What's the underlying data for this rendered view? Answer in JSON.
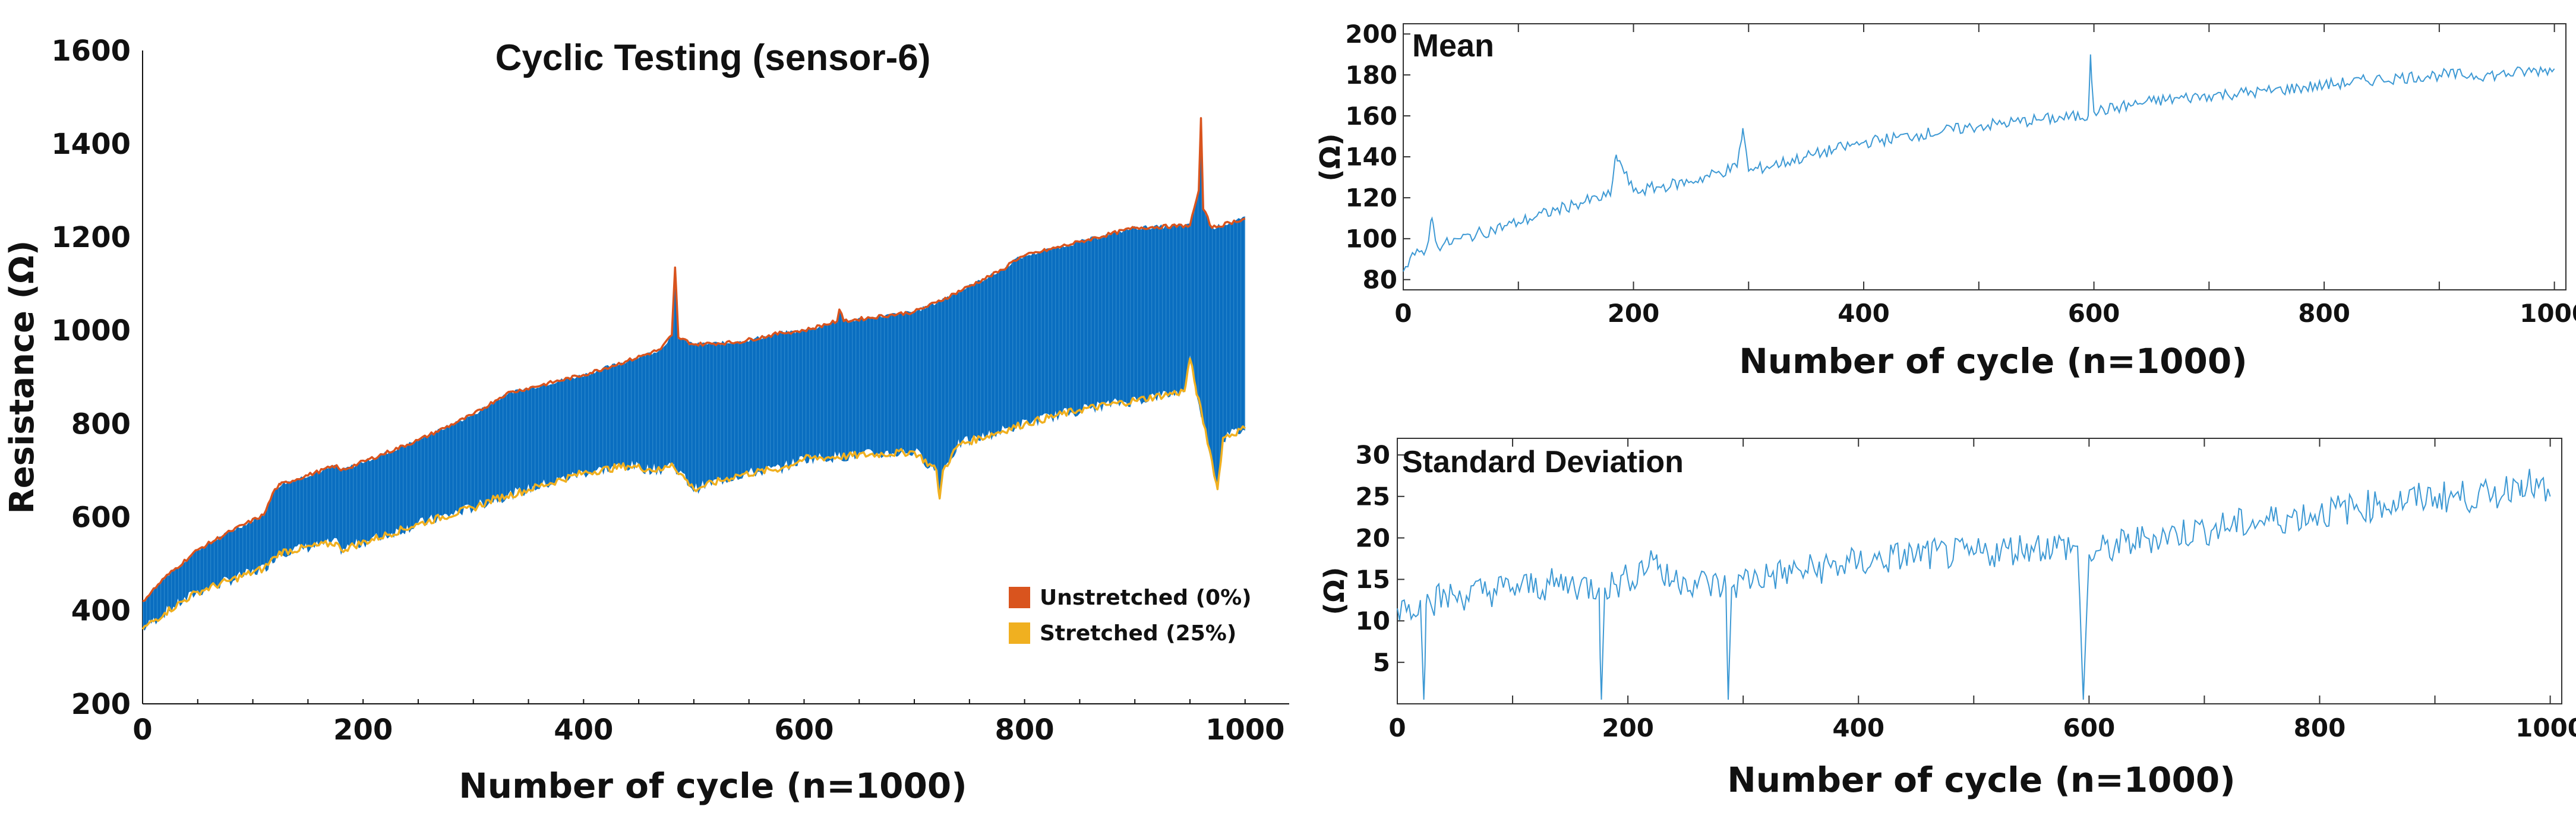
{
  "colors": {
    "band": "#0a6ec0",
    "unstretched": "#d9541e",
    "stretched": "#f0b020",
    "trace": "#3d99d4",
    "axis": "#111111"
  },
  "chart_data": [
    {
      "type": "area",
      "title": "Cyclic Testing (sensor-6)",
      "xlabel": "Number of cycle (n=1000)",
      "ylabel": "Resistance (Ω)",
      "xlim": [
        0,
        1040
      ],
      "ylim": [
        200,
        1600
      ],
      "xticks": [
        0,
        200,
        400,
        600,
        800,
        1000
      ],
      "yticks": [
        200,
        400,
        600,
        800,
        1000,
        1200,
        1400,
        1600
      ],
      "legend": {
        "position": "bottom-right",
        "entries": [
          "Unstretched (0%)",
          "Stretched (25%)"
        ]
      },
      "series": [
        {
          "name": "Unstretched (0%)",
          "x": [
            0,
            20,
            50,
            80,
            110,
            120,
            125,
            175,
            180,
            250,
            300,
            320,
            330,
            400,
            440,
            470,
            480,
            483,
            486,
            500,
            540,
            580,
            600,
            630,
            632,
            636,
            700,
            720,
            780,
            790,
            800,
            850,
            900,
            950,
            958,
            960,
            962,
            970,
            1000
          ],
          "values": [
            420,
            470,
            530,
            570,
            605,
            660,
            670,
            710,
            700,
            765,
            820,
            850,
            865,
            905,
            935,
            960,
            990,
            1135,
            985,
            970,
            975,
            995,
            1000,
            1020,
            1045,
            1020,
            1040,
            1060,
            1130,
            1150,
            1160,
            1190,
            1220,
            1225,
            1300,
            1455,
            1260,
            1220,
            1240
          ]
        },
        {
          "name": "Stretched (25%)",
          "x": [
            0,
            20,
            50,
            80,
            110,
            120,
            125,
            175,
            180,
            250,
            300,
            320,
            330,
            400,
            440,
            470,
            480,
            500,
            540,
            580,
            600,
            700,
            720,
            723,
            726,
            740,
            800,
            850,
            900,
            945,
            950,
            955,
            970,
            975,
            980,
            1000
          ],
          "values": [
            360,
            395,
            440,
            465,
            490,
            515,
            525,
            545,
            530,
            585,
            620,
            640,
            645,
            695,
            710,
            700,
            715,
            660,
            690,
            705,
            725,
            740,
            700,
            640,
            700,
            755,
            800,
            830,
            850,
            870,
            940,
            880,
            720,
            660,
            770,
            790
          ]
        }
      ]
    },
    {
      "type": "line",
      "title": "Mean",
      "xlabel": "Number of cycle (n=1000)",
      "ylabel": "(Ω)",
      "xlim": [
        0,
        1010
      ],
      "ylim": [
        75,
        205
      ],
      "xticks": [
        0,
        200,
        400,
        600,
        800,
        1000
      ],
      "yticks": [
        80,
        100,
        120,
        140,
        160,
        180,
        200
      ],
      "series": [
        {
          "name": "Mean",
          "x": [
            0,
            10,
            20,
            25,
            30,
            50,
            100,
            150,
            180,
            185,
            200,
            250,
            290,
            295,
            300,
            350,
            400,
            450,
            500,
            550,
            595,
            597,
            600,
            650,
            700,
            750,
            800,
            850,
            900,
            950,
            1000
          ],
          "values": [
            84,
            92,
            95,
            110,
            96,
            100,
            108,
            117,
            121,
            141,
            123,
            128,
            135,
            154,
            133,
            140,
            147,
            151,
            155,
            158,
            160,
            190,
            162,
            167,
            170,
            172,
            175,
            178,
            180,
            180,
            183
          ]
        }
      ]
    },
    {
      "type": "line",
      "title": "Standard Deviation",
      "xlabel": "Number of cycle (n=1000)",
      "ylabel": "(Ω)",
      "xlim": [
        0,
        1010
      ],
      "ylim": [
        0,
        32
      ],
      "xticks": [
        0,
        200,
        400,
        600,
        800,
        1000
      ],
      "yticks": [
        5,
        10,
        15,
        20,
        25,
        30
      ],
      "series": [
        {
          "name": "Standard Deviation",
          "x": [
            0,
            10,
            20,
            23,
            25,
            28,
            50,
            100,
            150,
            175,
            177,
            180,
            200,
            225,
            230,
            250,
            285,
            287,
            290,
            300,
            350,
            400,
            450,
            500,
            550,
            590,
            595,
            600,
            650,
            700,
            750,
            800,
            850,
            900,
            950,
            975,
            1000
          ],
          "values": [
            11.5,
            12,
            12.5,
            0.5,
            12,
            12.5,
            13,
            14,
            14.5,
            14,
            0.5,
            14,
            15,
            18,
            15,
            15,
            14,
            0.5,
            14,
            15,
            16,
            17,
            18,
            18,
            19,
            19,
            0.5,
            18,
            20,
            21,
            22,
            23,
            24,
            25,
            25,
            27,
            25
          ]
        }
      ]
    }
  ]
}
